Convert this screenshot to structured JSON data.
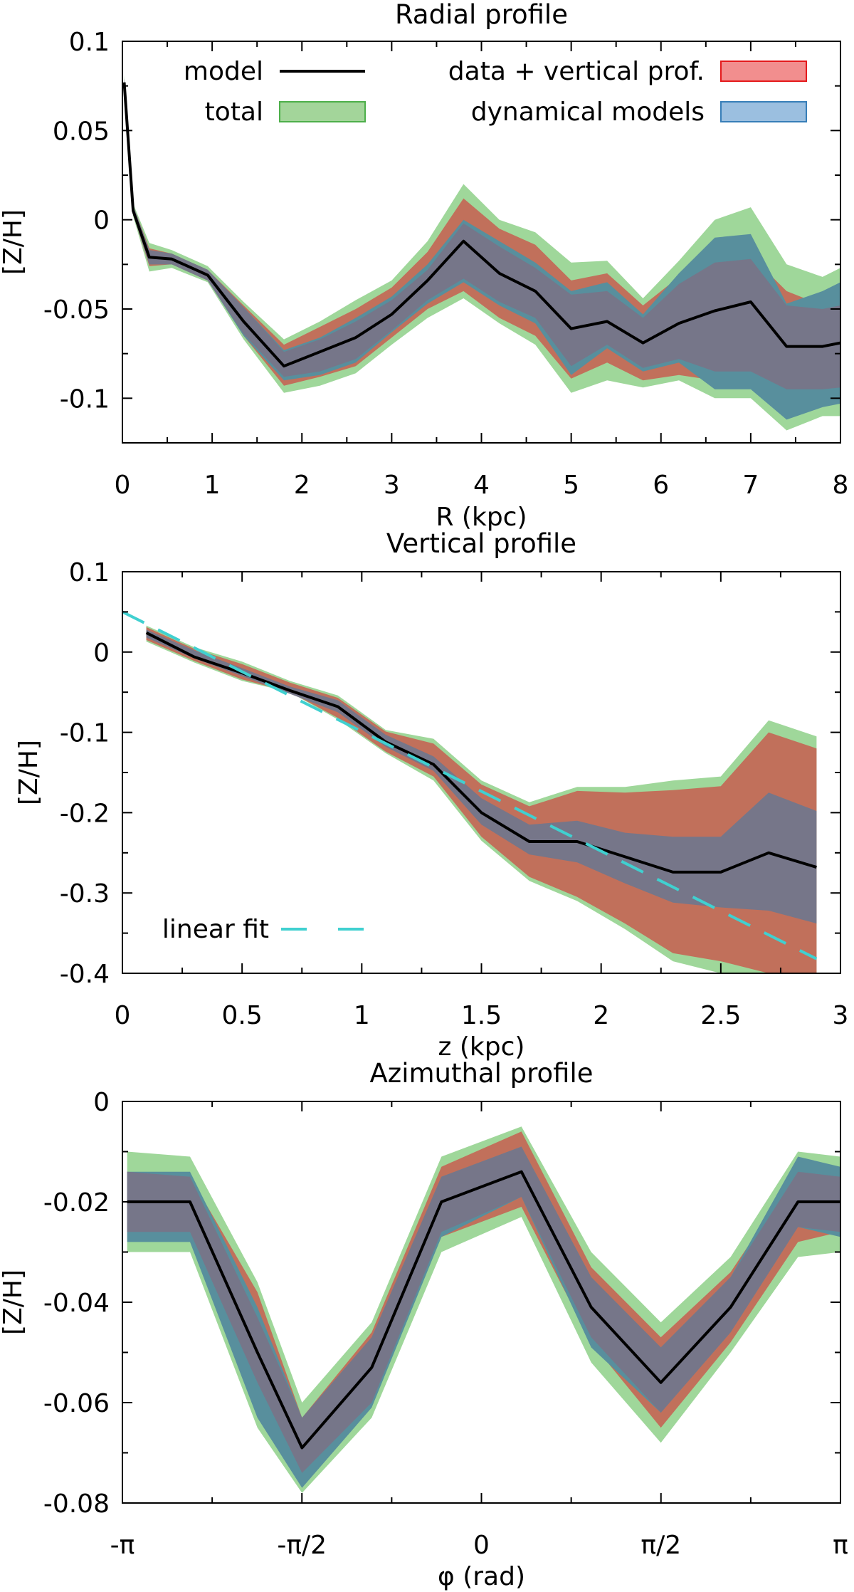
{
  "chart_data": [
    {
      "id": "radial",
      "type": "line",
      "title": "Radial profile",
      "xlabel": "R (kpc)",
      "ylabel": "[Z/H]",
      "xlim": [
        0,
        8
      ],
      "ylim": [
        -0.125,
        0.1
      ],
      "xticks": [
        {
          "v": 0,
          "label": "0"
        },
        {
          "v": 1,
          "label": "1"
        },
        {
          "v": 2,
          "label": "2"
        },
        {
          "v": 3,
          "label": "3"
        },
        {
          "v": 4,
          "label": "4"
        },
        {
          "v": 5,
          "label": "5"
        },
        {
          "v": 6,
          "label": "6"
        },
        {
          "v": 7,
          "label": "7"
        },
        {
          "v": 8,
          "label": "8"
        }
      ],
      "yticks": [
        {
          "v": 0.1,
          "label": "0.1"
        },
        {
          "v": 0.05,
          "label": "0.05"
        },
        {
          "v": 0,
          "label": "0"
        },
        {
          "v": -0.05,
          "label": "-0.05"
        },
        {
          "v": -0.1,
          "label": "-0.1"
        }
      ],
      "legend": [
        {
          "key": "model",
          "label": "model",
          "kind": "line",
          "color": "#000000",
          "side": "left"
        },
        {
          "key": "total",
          "label": "total",
          "kind": "band",
          "color": "#a3d59a",
          "stroke": "#4daf4a",
          "side": "left"
        },
        {
          "key": "data",
          "label": "data + vertical prof.",
          "kind": "band",
          "color": "#f28e8e",
          "stroke": "#e41a1c",
          "side": "right"
        },
        {
          "key": "dyn",
          "label": "dynamical models",
          "kind": "band",
          "color": "#9bbfe0",
          "stroke": "#377eb8",
          "side": "right"
        }
      ],
      "x": [
        0.02,
        0.12,
        0.3,
        0.55,
        0.95,
        1.35,
        1.8,
        2.2,
        2.6,
        3.0,
        3.4,
        3.8,
        4.2,
        4.6,
        5.0,
        5.4,
        5.8,
        6.2,
        6.6,
        7.0,
        7.4,
        7.8,
        8.0
      ],
      "series": [
        {
          "name": "total",
          "kind": "band",
          "color": "#9fd79a",
          "lower": [
            0.072,
            0.002,
            -0.029,
            -0.027,
            -0.035,
            -0.067,
            -0.097,
            -0.093,
            -0.086,
            -0.07,
            -0.055,
            -0.044,
            -0.058,
            -0.07,
            -0.097,
            -0.09,
            -0.094,
            -0.09,
            -0.1,
            -0.1,
            -0.118,
            -0.11,
            -0.11
          ],
          "upper": [
            0.081,
            0.009,
            -0.013,
            -0.017,
            -0.026,
            -0.046,
            -0.067,
            -0.057,
            -0.045,
            -0.034,
            -0.012,
            0.02,
            0.0,
            -0.007,
            -0.024,
            -0.023,
            -0.044,
            -0.023,
            0.0,
            0.007,
            -0.025,
            -0.032,
            -0.027
          ]
        },
        {
          "name": "data",
          "kind": "band",
          "color": "#c1705b",
          "lower": [
            0.074,
            0.003,
            -0.026,
            -0.025,
            -0.034,
            -0.065,
            -0.093,
            -0.088,
            -0.082,
            -0.066,
            -0.05,
            -0.04,
            -0.055,
            -0.065,
            -0.089,
            -0.08,
            -0.09,
            -0.087,
            -0.09,
            -0.09,
            -0.1,
            -0.1,
            -0.1
          ],
          "upper": [
            0.079,
            0.008,
            -0.016,
            -0.019,
            -0.028,
            -0.048,
            -0.07,
            -0.06,
            -0.05,
            -0.038,
            -0.018,
            0.012,
            -0.005,
            -0.014,
            -0.034,
            -0.03,
            -0.048,
            -0.032,
            -0.02,
            -0.02,
            -0.04,
            -0.048,
            -0.045
          ]
        },
        {
          "name": "dyn",
          "kind": "band",
          "color": "#588f9d",
          "lower": [
            0.074,
            0.003,
            -0.025,
            -0.025,
            -0.034,
            -0.065,
            -0.09,
            -0.087,
            -0.08,
            -0.063,
            -0.047,
            -0.035,
            -0.048,
            -0.058,
            -0.087,
            -0.072,
            -0.085,
            -0.08,
            -0.095,
            -0.095,
            -0.112,
            -0.105,
            -0.103
          ],
          "upper": [
            0.079,
            0.008,
            -0.017,
            -0.019,
            -0.028,
            -0.049,
            -0.073,
            -0.066,
            -0.055,
            -0.043,
            -0.025,
            0.0,
            -0.012,
            -0.024,
            -0.04,
            -0.035,
            -0.053,
            -0.03,
            -0.01,
            -0.008,
            -0.047,
            -0.04,
            -0.035
          ]
        },
        {
          "name": "overlap",
          "kind": "band",
          "color": "#767689",
          "lower": [
            0.074,
            0.003,
            -0.025,
            -0.025,
            -0.034,
            -0.064,
            -0.088,
            -0.085,
            -0.078,
            -0.062,
            -0.045,
            -0.033,
            -0.046,
            -0.055,
            -0.082,
            -0.07,
            -0.083,
            -0.078,
            -0.085,
            -0.085,
            -0.095,
            -0.095,
            -0.094
          ],
          "upper": [
            0.079,
            0.008,
            -0.017,
            -0.019,
            -0.028,
            -0.049,
            -0.074,
            -0.067,
            -0.057,
            -0.045,
            -0.028,
            -0.002,
            -0.015,
            -0.027,
            -0.042,
            -0.04,
            -0.055,
            -0.036,
            -0.024,
            -0.022,
            -0.048,
            -0.05,
            -0.048
          ]
        },
        {
          "name": "model",
          "kind": "line",
          "color": "#000000",
          "y": [
            0.077,
            0.005,
            -0.021,
            -0.022,
            -0.031,
            -0.057,
            -0.082,
            -0.074,
            -0.066,
            -0.053,
            -0.034,
            -0.012,
            -0.03,
            -0.04,
            -0.061,
            -0.057,
            -0.069,
            -0.058,
            -0.051,
            -0.046,
            -0.071,
            -0.071,
            -0.069
          ]
        }
      ]
    },
    {
      "id": "vertical",
      "type": "line",
      "title": "Vertical profile",
      "xlabel": "z (kpc)",
      "ylabel": "[Z/H]",
      "xlim": [
        0,
        3
      ],
      "ylim": [
        -0.4,
        0.1
      ],
      "xticks": [
        {
          "v": 0,
          "label": "0"
        },
        {
          "v": 0.5,
          "label": "0.5"
        },
        {
          "v": 1,
          "label": "1"
        },
        {
          "v": 1.5,
          "label": "1.5"
        },
        {
          "v": 2,
          "label": "2"
        },
        {
          "v": 2.5,
          "label": "2.5"
        },
        {
          "v": 3,
          "label": "3"
        }
      ],
      "yticks": [
        {
          "v": 0.1,
          "label": "0.1"
        },
        {
          "v": 0,
          "label": "0"
        },
        {
          "v": -0.1,
          "label": "-0.1"
        },
        {
          "v": -0.2,
          "label": "-0.2"
        },
        {
          "v": -0.3,
          "label": "-0.3"
        },
        {
          "v": -0.4,
          "label": "-0.4"
        }
      ],
      "legend": [
        {
          "key": "fit",
          "label": "linear fit",
          "kind": "dashed",
          "color": "#40d0d0",
          "side": "left"
        }
      ],
      "x": [
        0.1,
        0.3,
        0.5,
        0.7,
        0.9,
        1.1,
        1.3,
        1.5,
        1.7,
        1.9,
        2.1,
        2.3,
        2.5,
        2.7,
        2.9
      ],
      "series": [
        {
          "name": "total",
          "kind": "band",
          "color": "#9fd79a",
          "lower": [
            0.013,
            -0.013,
            -0.036,
            -0.05,
            -0.084,
            -0.126,
            -0.16,
            -0.235,
            -0.285,
            -0.31,
            -0.345,
            -0.385,
            -0.4,
            -0.405,
            -0.41
          ],
          "upper": [
            0.033,
            0.006,
            -0.012,
            -0.036,
            -0.054,
            -0.097,
            -0.108,
            -0.16,
            -0.187,
            -0.168,
            -0.168,
            -0.16,
            -0.155,
            -0.085,
            -0.105
          ]
        },
        {
          "name": "data",
          "kind": "band",
          "color": "#c1705b",
          "lower": [
            0.015,
            -0.011,
            -0.034,
            -0.05,
            -0.082,
            -0.124,
            -0.155,
            -0.23,
            -0.28,
            -0.305,
            -0.338,
            -0.375,
            -0.385,
            -0.4,
            -0.4
          ],
          "upper": [
            0.031,
            0.004,
            -0.015,
            -0.038,
            -0.057,
            -0.099,
            -0.114,
            -0.165,
            -0.192,
            -0.173,
            -0.175,
            -0.172,
            -0.167,
            -0.1,
            -0.12
          ]
        },
        {
          "name": "overlap",
          "kind": "band",
          "color": "#767689",
          "lower": [
            0.018,
            -0.008,
            -0.03,
            -0.052,
            -0.075,
            -0.118,
            -0.148,
            -0.215,
            -0.252,
            -0.262,
            -0.288,
            -0.312,
            -0.318,
            -0.322,
            -0.338
          ],
          "upper": [
            0.028,
            0.002,
            -0.02,
            -0.043,
            -0.06,
            -0.103,
            -0.13,
            -0.182,
            -0.215,
            -0.21,
            -0.225,
            -0.23,
            -0.23,
            -0.175,
            -0.198
          ]
        },
        {
          "name": "model",
          "kind": "line",
          "color": "#000000",
          "y": [
            0.024,
            -0.006,
            -0.026,
            -0.048,
            -0.068,
            -0.112,
            -0.14,
            -0.2,
            -0.236,
            -0.236,
            -0.255,
            -0.274,
            -0.274,
            -0.25,
            -0.268
          ]
        },
        {
          "name": "linear fit",
          "kind": "dashed",
          "color": "#40d0d0",
          "x": [
            0.0,
            2.9
          ],
          "y": [
            0.05,
            -0.382
          ]
        }
      ]
    },
    {
      "id": "azimuthal",
      "type": "line",
      "title": "Azimuthal profile",
      "xlabel": "φ (rad)",
      "ylabel": "[Z/H]",
      "xlim": [
        -3.14159,
        3.14159
      ],
      "ylim": [
        -0.08,
        0
      ],
      "xticks": [
        {
          "v": -3.14159,
          "label": "-π"
        },
        {
          "v": -1.5708,
          "label": "-π/2"
        },
        {
          "v": 0,
          "label": "0"
        },
        {
          "v": 1.5708,
          "label": "π/2"
        },
        {
          "v": 3.14159,
          "label": "π"
        }
      ],
      "yticks": [
        {
          "v": 0,
          "label": "0"
        },
        {
          "v": -0.02,
          "label": "-0.02"
        },
        {
          "v": -0.04,
          "label": "-0.04"
        },
        {
          "v": -0.06,
          "label": "-0.06"
        },
        {
          "v": -0.08,
          "label": "-0.08"
        }
      ],
      "legend": [],
      "x": [
        -3.1,
        -2.55,
        -1.96,
        -1.57,
        -0.96,
        -0.35,
        0.35,
        0.96,
        1.57,
        2.18,
        2.77,
        3.14
      ],
      "series": [
        {
          "name": "total",
          "kind": "band",
          "color": "#9fd79a",
          "lower": [
            -0.03,
            -0.03,
            -0.065,
            -0.078,
            -0.063,
            -0.03,
            -0.023,
            -0.052,
            -0.068,
            -0.05,
            -0.031,
            -0.03
          ],
          "upper": [
            -0.01,
            -0.011,
            -0.036,
            -0.06,
            -0.044,
            -0.011,
            -0.005,
            -0.03,
            -0.044,
            -0.031,
            -0.01,
            -0.011
          ]
        },
        {
          "name": "data",
          "kind": "band",
          "color": "#c1705b",
          "lower": [
            -0.026,
            -0.026,
            -0.059,
            -0.074,
            -0.06,
            -0.027,
            -0.021,
            -0.048,
            -0.065,
            -0.048,
            -0.028,
            -0.026
          ],
          "upper": [
            -0.014,
            -0.015,
            -0.038,
            -0.063,
            -0.046,
            -0.013,
            -0.006,
            -0.033,
            -0.047,
            -0.034,
            -0.014,
            -0.015
          ]
        },
        {
          "name": "dyn",
          "kind": "band",
          "color": "#588f9d",
          "lower": [
            -0.028,
            -0.028,
            -0.063,
            -0.077,
            -0.061,
            -0.027,
            -0.019,
            -0.049,
            -0.062,
            -0.046,
            -0.025,
            -0.027
          ],
          "upper": [
            -0.014,
            -0.014,
            -0.041,
            -0.063,
            -0.047,
            -0.015,
            -0.009,
            -0.035,
            -0.049,
            -0.035,
            -0.011,
            -0.013
          ]
        },
        {
          "name": "overlap",
          "kind": "band",
          "color": "#767689",
          "lower": [
            -0.026,
            -0.026,
            -0.056,
            -0.074,
            -0.06,
            -0.026,
            -0.019,
            -0.047,
            -0.062,
            -0.046,
            -0.025,
            -0.026
          ],
          "upper": [
            -0.014,
            -0.015,
            -0.043,
            -0.063,
            -0.047,
            -0.015,
            -0.009,
            -0.035,
            -0.049,
            -0.035,
            -0.014,
            -0.015
          ]
        },
        {
          "name": "model",
          "kind": "line",
          "color": "#000000",
          "y": [
            -0.02,
            -0.02,
            -0.05,
            -0.069,
            -0.053,
            -0.02,
            -0.014,
            -0.041,
            -0.056,
            -0.041,
            -0.02,
            -0.02
          ]
        }
      ]
    }
  ]
}
